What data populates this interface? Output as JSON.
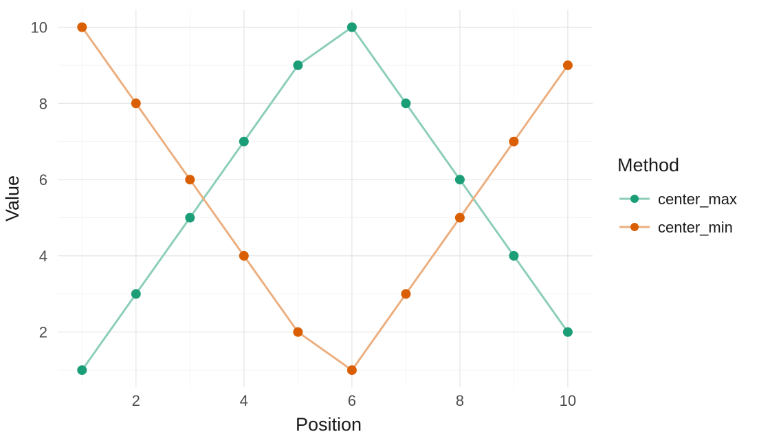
{
  "chart_data": {
    "type": "line",
    "title": "",
    "xlabel": "Position",
    "ylabel": "Value",
    "x": [
      1,
      2,
      3,
      4,
      5,
      6,
      7,
      8,
      9,
      10
    ],
    "series": [
      {
        "name": "center_max",
        "values": [
          1,
          3,
          5,
          7,
          9,
          10,
          8,
          6,
          4,
          2
        ],
        "point_color": "#1B9E77",
        "line_color": "#8DCEBB"
      },
      {
        "name": "center_min",
        "values": [
          10,
          8,
          6,
          4,
          2,
          1,
          3,
          5,
          7,
          9
        ],
        "point_color": "#D95F02",
        "line_color": "#ECAF80"
      }
    ],
    "x_ticks": [
      2,
      4,
      6,
      8,
      10
    ],
    "y_ticks": [
      2,
      4,
      6,
      8,
      10
    ],
    "x_minor_gridlines": [
      1,
      3,
      5,
      7,
      9
    ],
    "y_minor_gridlines": [
      1,
      3,
      5,
      7,
      9
    ],
    "xlim": [
      0.55,
      10.46
    ],
    "ylim": [
      0.55,
      10.46
    ],
    "grid": true,
    "legend": {
      "title": "Method",
      "position": "right",
      "entries": [
        "center_max",
        "center_min"
      ]
    }
  },
  "styles": {
    "background": "#FFFFFF",
    "grid_major_color": "#E4E4E4",
    "grid_minor_color": "#F1F1F1",
    "tick_label_color": "#4D4D4D",
    "axis_title_color": "#1A1A1A",
    "legend_text_color": "#1A1A1A"
  }
}
